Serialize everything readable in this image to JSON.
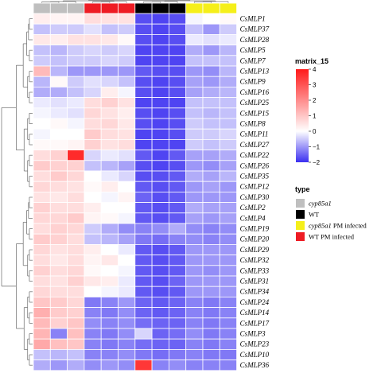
{
  "chart_data": {
    "type": "heatmap",
    "rows": [
      "CsMLP1",
      "CsMLP37",
      "CsMLP28",
      "CsMLP5",
      "CsMLP7",
      "CsMLP13",
      "CsMLP9",
      "CsMLP16",
      "CsMLP25",
      "CsMLP15",
      "CsMLP8",
      "CsMLP11",
      "CsMLP27",
      "CsMLP22",
      "CsMLP26",
      "CsMLP35",
      "CsMLP12",
      "CsMLP30",
      "CsMLP2",
      "CsMLP4",
      "CsMLP19",
      "CsMLP20",
      "CsMLP29",
      "CsMLP32",
      "CsMLP33",
      "CsMLP31",
      "CsMLP34",
      "CsMLP24",
      "CsMLP14",
      "CsMLP17",
      "CsMLP3",
      "CsMLP23",
      "CsMLP10",
      "CsMLP36"
    ],
    "column_groups": [
      "cyp85a1",
      "cyp85a1",
      "cyp85a1",
      "WT PM infected",
      "WT PM infected",
      "WT PM infected",
      "WT",
      "WT",
      "WT",
      "cyp85a1 PM infected",
      "cyp85a1 PM infected",
      "cyp85a1 PM infected"
    ],
    "values": [
      [
        0.3,
        0.2,
        0.2,
        0.6,
        0.5,
        0.5,
        -1.7,
        -1.8,
        -1.7,
        -0.1,
        0.0,
        0.1
      ],
      [
        -0.6,
        -0.5,
        -0.5,
        -0.3,
        -0.6,
        -0.5,
        -1.7,
        -1.8,
        -1.7,
        -0.6,
        -1.0,
        -0.5
      ],
      [
        0.4,
        0.3,
        0.5,
        0.5,
        0.4,
        0.1,
        -1.7,
        -1.8,
        -1.7,
        -0.2,
        -0.3,
        -0.2
      ],
      [
        -0.6,
        -0.7,
        -0.5,
        -0.4,
        -0.5,
        -0.4,
        -1.8,
        -1.8,
        -1.8,
        -0.8,
        -1.0,
        -0.7
      ],
      [
        -0.5,
        -0.6,
        -0.5,
        -0.5,
        -0.4,
        -0.5,
        -1.8,
        -1.8,
        -1.8,
        -0.6,
        -0.6,
        -0.6
      ],
      [
        1.2,
        -0.7,
        -1.0,
        -1.0,
        -1.0,
        -1.0,
        -1.6,
        -1.7,
        -1.7,
        -1.0,
        -1.1,
        -0.7
      ],
      [
        -0.7,
        0.1,
        -0.5,
        -0.3,
        -0.4,
        -0.6,
        -1.7,
        -1.8,
        -1.7,
        -0.9,
        -1.0,
        -0.8
      ],
      [
        -0.8,
        -0.8,
        -0.6,
        -0.4,
        0.3,
        -0.1,
        -1.7,
        -1.8,
        -1.7,
        -0.9,
        -0.8,
        -0.7
      ],
      [
        -0.2,
        -0.3,
        -0.2,
        0.6,
        0.8,
        0.5,
        -1.8,
        -1.8,
        -1.8,
        -0.6,
        -0.6,
        -0.6
      ],
      [
        -0.1,
        -0.2,
        -0.3,
        0.7,
        0.5,
        0.3,
        -1.7,
        -1.8,
        -1.7,
        -0.6,
        -0.7,
        -0.6
      ],
      [
        0.0,
        0.1,
        -0.1,
        0.6,
        0.7,
        0.4,
        -1.7,
        -1.8,
        -1.7,
        -0.5,
        -0.6,
        -0.6
      ],
      [
        -0.1,
        0.0,
        0.0,
        0.9,
        0.6,
        0.5,
        -1.8,
        -1.8,
        -1.7,
        -0.5,
        -0.5,
        -0.4
      ],
      [
        0.1,
        0.1,
        0.2,
        0.8,
        0.5,
        0.6,
        -1.8,
        -1.8,
        -1.8,
        -0.5,
        -0.6,
        -0.5
      ],
      [
        0.6,
        0.8,
        3.7,
        -0.4,
        -0.2,
        -0.3,
        -1.6,
        -1.8,
        -1.6,
        -0.9,
        -0.9,
        -0.8
      ],
      [
        0.9,
        0.8,
        0.8,
        -0.6,
        -0.7,
        -0.9,
        -1.7,
        -1.8,
        -1.7,
        -1.0,
        -1.1,
        -0.9
      ],
      [
        0.6,
        0.9,
        0.7,
        0.0,
        -0.2,
        -0.4,
        -1.7,
        -1.7,
        -1.6,
        -0.8,
        -0.9,
        -0.7
      ],
      [
        0.7,
        0.6,
        0.5,
        0.1,
        0.3,
        0.0,
        -1.6,
        -1.7,
        -1.6,
        -1.0,
        -0.9,
        -1.0
      ],
      [
        0.5,
        0.4,
        0.6,
        0.0,
        -0.1,
        0.2,
        -1.5,
        -1.7,
        -1.6,
        -1.0,
        -1.0,
        -1.0
      ],
      [
        0.8,
        0.6,
        0.6,
        0.3,
        0.0,
        0.0,
        -1.6,
        -1.7,
        -1.6,
        -0.8,
        -0.9,
        -0.9
      ],
      [
        0.7,
        0.7,
        0.9,
        0.2,
        0.1,
        -0.1,
        -1.6,
        -1.7,
        -1.6,
        -0.9,
        -1.0,
        -0.9
      ],
      [
        0.6,
        0.8,
        0.7,
        -0.5,
        -0.8,
        -1.1,
        -1.2,
        -1.1,
        -0.8,
        -1.1,
        -1.2,
        -1.1
      ],
      [
        0.9,
        0.8,
        0.6,
        -0.6,
        -0.7,
        -0.9,
        -1.3,
        -1.4,
        -1.2,
        -1.1,
        -1.2,
        -1.1
      ],
      [
        0.7,
        0.5,
        0.6,
        0.3,
        0.0,
        -0.2,
        -1.6,
        -1.7,
        -1.6,
        -1.0,
        -1.0,
        -1.0
      ],
      [
        0.6,
        0.4,
        0.6,
        0.2,
        0.4,
        0.0,
        -1.6,
        -1.7,
        -1.6,
        -1.0,
        -1.0,
        -1.0
      ],
      [
        0.8,
        0.6,
        0.7,
        0.1,
        0.0,
        -0.1,
        -1.6,
        -1.7,
        -1.6,
        -1.0,
        -1.1,
        -1.0
      ],
      [
        0.6,
        0.5,
        0.8,
        0.4,
        0.3,
        -0.2,
        -1.6,
        -1.7,
        -1.5,
        -1.0,
        -1.0,
        -1.0
      ],
      [
        0.7,
        0.6,
        0.6,
        0.0,
        -0.1,
        -0.2,
        -1.6,
        -1.7,
        -1.6,
        -1.0,
        -1.0,
        -1.0
      ],
      [
        1.0,
        0.9,
        0.7,
        -1.3,
        -1.2,
        -1.0,
        -1.5,
        -1.6,
        -1.5,
        -1.2,
        -1.3,
        -1.2
      ],
      [
        1.4,
        0.9,
        0.8,
        -1.2,
        -1.3,
        -1.1,
        -1.5,
        -1.6,
        -1.5,
        -1.2,
        -1.3,
        -1.2
      ],
      [
        1.2,
        0.8,
        1.0,
        -1.1,
        -1.2,
        -1.1,
        -1.4,
        -1.5,
        -1.5,
        -1.2,
        -1.3,
        -1.2
      ],
      [
        1.3,
        -1.2,
        1.1,
        -1.2,
        -1.3,
        -1.1,
        -0.4,
        -1.5,
        -1.4,
        -1.1,
        -1.3,
        -1.2
      ],
      [
        1.5,
        1.1,
        1.0,
        -1.2,
        -1.3,
        -1.2,
        -1.4,
        -1.5,
        -1.5,
        -1.2,
        -1.3,
        -1.2
      ],
      [
        -0.6,
        -0.7,
        -0.6,
        -1.2,
        -1.2,
        -1.1,
        -1.3,
        -1.4,
        -1.3,
        -1.2,
        -1.3,
        -1.3
      ],
      [
        -0.8,
        -1.0,
        -0.8,
        -1.1,
        -1.0,
        -1.1,
        3.5,
        -1.2,
        -1.1,
        -1.2,
        -1.2,
        -1.2
      ]
    ],
    "color_scale": {
      "name": "matrix_15",
      "min": -2,
      "max": 4,
      "ticks": [
        4,
        3,
        2,
        1,
        0,
        -1,
        -2
      ],
      "low_color": "#3b2ff0",
      "mid_color": "#ffffff",
      "high_color": "#ff1a1a"
    },
    "legend": {
      "title": "type",
      "items": [
        {
          "label": "cyp85a1",
          "italic": true,
          "color": "#bfbfbf"
        },
        {
          "label": "WT",
          "italic": false,
          "color": "#000000"
        },
        {
          "label": "cyp85a1 PM infected",
          "italic_part": "cyp85a1",
          "color": "#f5ef1a"
        },
        {
          "label": "WT PM infected",
          "italic": false,
          "color": "#ee1c24"
        }
      ]
    }
  }
}
